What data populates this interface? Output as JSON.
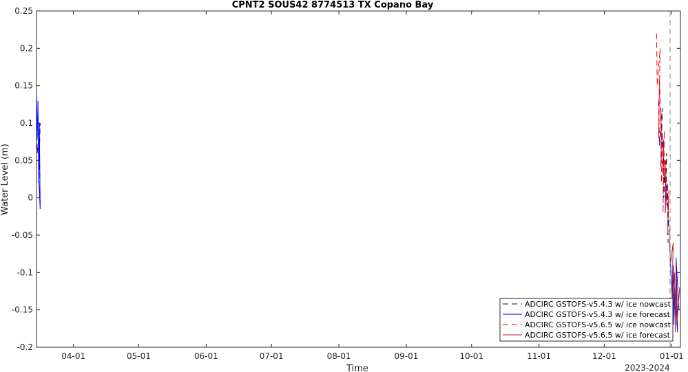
{
  "chart_data": {
    "type": "line",
    "title": "CPNT2 SOUS42 8774513 TX Copano Bay",
    "xlabel": "Time",
    "ylabel": "Water Level (m)",
    "x_year_label": "2023-2024",
    "x_ticks": [
      "04-01",
      "05-01",
      "06-01",
      "07-01",
      "08-01",
      "09-01",
      "10-01",
      "11-01",
      "12-01",
      "01-01"
    ],
    "x_range": [
      "2023-03-15",
      "2024-01-05"
    ],
    "ylim": [
      -0.2,
      0.25
    ],
    "y_ticks": [
      -0.2,
      -0.15,
      -0.1,
      -0.05,
      0,
      0.05,
      0.1,
      0.15,
      0.2,
      0.25
    ],
    "y_tick_labels": [
      "-0.2",
      "-0.15",
      "-0.1",
      "-0.05",
      "0",
      "0.05",
      "0.1",
      "0.15",
      "0.2",
      "0.25"
    ],
    "grid": false,
    "legend_position": "bottom-right",
    "series": [
      {
        "name": "ADCIRC GSTOFS-v5.4.3 w/ ice nowcast",
        "color": "#000080",
        "style": "dashed",
        "segments": [
          {
            "x": [
              "2023-03-15",
              "2023-03-15",
              "2023-03-16",
              "2023-03-16",
              "2023-03-16",
              "2023-03-16"
            ],
            "y": [
              0.12,
              0.06,
              0.1,
              0.02,
              0.08,
              -0.01
            ]
          },
          {
            "x": [
              "2023-12-26",
              "2023-12-26",
              "2023-12-27",
              "2023-12-27",
              "2023-12-27",
              "2023-12-28",
              "2023-12-28",
              "2023-12-28",
              "2023-12-29",
              "2023-12-29",
              "2023-12-29",
              "2023-12-30",
              "2023-12-30",
              "2023-12-30"
            ],
            "y": [
              0.13,
              0.07,
              0.12,
              0.04,
              0.1,
              0.02,
              0.08,
              0.0,
              0.06,
              -0.02,
              0.04,
              -0.04,
              0.02,
              -0.06
            ]
          }
        ]
      },
      {
        "name": "ADCIRC GSTOFS-v5.4.3 w/ ice forecast",
        "color": "#0000ff",
        "style": "solid",
        "segments": [
          {
            "x": [
              "2023-03-15",
              "2023-03-15",
              "2023-03-15",
              "2023-03-16",
              "2023-03-16",
              "2023-03-16",
              "2023-03-16"
            ],
            "y": [
              0.14,
              0.08,
              0.13,
              0.03,
              0.1,
              -0.015,
              0.03
            ]
          },
          {
            "x": [
              "2023-12-31",
              "2024-01-01",
              "2024-01-01",
              "2024-01-02",
              "2024-01-02",
              "2024-01-03",
              "2024-01-03",
              "2024-01-04"
            ],
            "y": [
              -0.06,
              -0.14,
              -0.09,
              -0.17,
              -0.12,
              -0.18,
              -0.08,
              -0.15
            ]
          }
        ]
      },
      {
        "name": "ADCIRC GSTOFS-v5.6.5 w/ ice nowcast",
        "color": "#ff0000",
        "style": "dashed",
        "segments": [
          {
            "x": [
              "2023-12-25",
              "2023-12-25",
              "2023-12-26",
              "2023-12-26",
              "2023-12-26",
              "2023-12-27",
              "2023-12-27",
              "2023-12-27",
              "2023-12-28",
              "2023-12-28",
              "2023-12-28",
              "2023-12-29",
              "2023-12-29",
              "2023-12-30",
              "2023-12-30",
              "2023-12-30"
            ],
            "y": [
              0.22,
              0.15,
              0.2,
              0.08,
              0.16,
              0.04,
              0.12,
              0.02,
              0.09,
              -0.02,
              0.07,
              -0.01,
              0.05,
              -0.03,
              0.01,
              -0.05
            ]
          }
        ]
      },
      {
        "name": "ADCIRC GSTOFS-v5.6.5 w/ ice forecast",
        "color": "#b22222",
        "style": "solid",
        "segments": [
          {
            "x": [
              "2023-12-31",
              "2023-12-31",
              "2024-01-01",
              "2024-01-01",
              "2024-01-02",
              "2024-01-02",
              "2024-01-03",
              "2024-01-03",
              "2024-01-04"
            ],
            "y": [
              -0.04,
              -0.09,
              -0.06,
              -0.15,
              -0.1,
              -0.18,
              -0.09,
              -0.17,
              -0.12
            ]
          }
        ]
      }
    ]
  }
}
